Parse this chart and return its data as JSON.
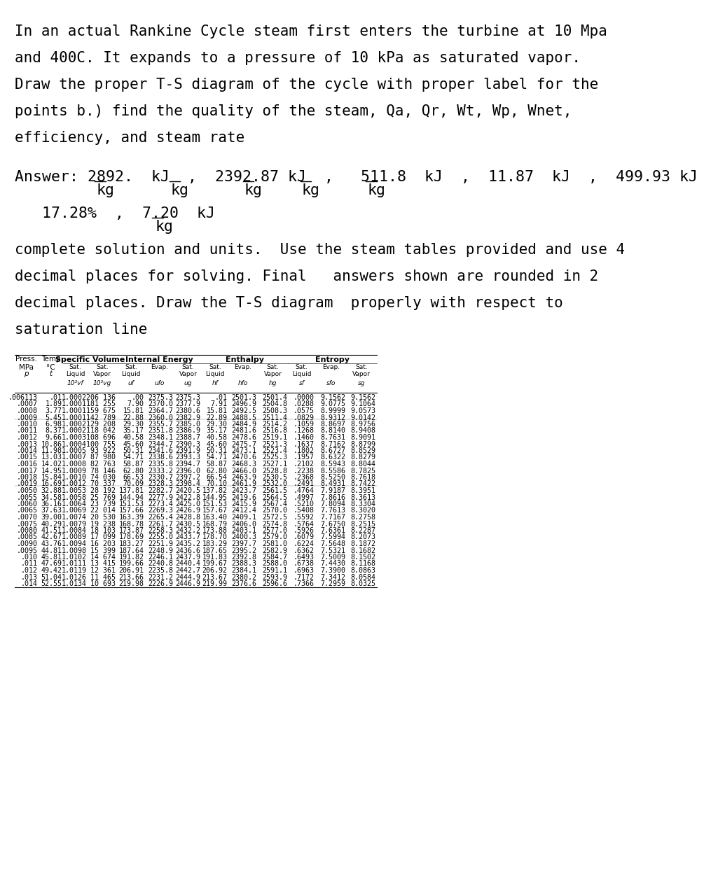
{
  "intro_text": [
    "In an actual Rankine Cycle steam first enters the turbine at 10 Mpa",
    "and 400C. It expands to a pressure of 10 kPa as saturated vapor.",
    "Draw the proper T-S diagram of the cycle with proper label for the",
    "points b.) find the quality of the steam, Qa, Qr, Wt, Wp, Wnet,",
    "efficiency, and steam rate"
  ],
  "answer_line1": "Answer: 2892.  kJ  ,  2392.87 kJ ,   511.8  kJ  ,  11.87  kJ  ,  499.93 kJ",
  "answer_line1_kg": "                  kg              kg            kg              kg             kg",
  "answer_line2": "        17.28%  ,  7.20  kJ",
  "answer_line2_kg": "                          kg",
  "body_text": [
    "complete solution and units.  Use the steam tables provided and use 4",
    "decimal places for solving. Final   answers shown are rounded in 2",
    "decimal places. Draw the T-S diagram  properly with respect to",
    "saturation line"
  ],
  "table_headers": {
    "col_groups": [
      "Press.\nMPa\np",
      "Temp\n°C\nt",
      "Specific Volume\nSat.\nLiquid\n10³vf",
      "Sat.\nVapor\n10³vg",
      "Internal Energy\nSat.\nLiquid\nuf",
      "Evap.\nufo",
      "Sat.\nVapor\nug",
      "Enthalpy\nSat.\nLiquid\nhf",
      "Evap.\nhfo",
      "Sat.\nVapor\nhg",
      "Entropy\nSat.\nLiquid\nsf",
      "Evap.\nsfo",
      "Sat.\nVapor\nsg"
    ]
  },
  "table_rows": [
    [
      ".006113",
      ".01",
      "1.0002",
      "206 136",
      ".00",
      "2375.3",
      "2375.3",
      ".01",
      "2501.3",
      "2501.4",
      ".0000",
      "9.1562",
      "9.1562"
    ],
    [
      ".0007",
      "1.89",
      "1.0001",
      "181 255",
      "7.90",
      "2370.0",
      "2377.9",
      "7.91",
      "2496.9",
      "2504.8",
      ".0288",
      "9.0775",
      "9.1064"
    ],
    [
      ".0008",
      "3.77",
      "1.0001",
      "159 675",
      "15.81",
      "2364.7",
      "2380.6",
      "15.81",
      "2492.5",
      "2508.3",
      ".0575",
      "8.9999",
      "9.0573"
    ],
    [
      ".0009",
      "5.45",
      "1.0001",
      "142 789",
      "22.88",
      "2360.0",
      "2382.9",
      "22.89",
      "2488.5",
      "2511.4",
      ".0829",
      "8.9312",
      "9.0142"
    ],
    [
      ".0010",
      "6.98",
      "1.0002",
      "129 208",
      "29.30",
      "2355.7",
      "2385.0",
      "29.30",
      "2484.9",
      "2514.2",
      ".1059",
      "8.8697",
      "8.9756"
    ],
    [
      ".0011",
      "8.37",
      "1.0002",
      "118 042",
      "35.17",
      "2351.8",
      "2386.9",
      "35.17",
      "2481.6",
      "2516.8",
      ".1268",
      "8.8140",
      "8.9408"
    ],
    [
      ".0012",
      "9.66",
      "1.0003",
      "108 696",
      "40.58",
      "2348.1",
      "2388.7",
      "40.58",
      "2478.6",
      "2519.1",
      ".1460",
      "8.7631",
      "8.9091"
    ],
    [
      ".0013",
      "10.86",
      "1.0004",
      "100 755",
      "45.60",
      "2344.7",
      "2390.3",
      "45.60",
      "2475.7",
      "2521.3",
      ".1637",
      "8.7162",
      "8.8799"
    ],
    [
      ".0014",
      "11.98",
      "1.0005",
      "93 922",
      "50.31",
      "2341.6",
      "2391.9",
      "50.31",
      "2473.1",
      "2523.4",
      ".1802",
      "8.6727",
      "8.8529"
    ],
    [
      ".0015",
      "13.03",
      "1.0007",
      "87 980",
      "54.71",
      "2338.6",
      "2393.3",
      "54.71",
      "2470.6",
      "2525.3",
      ".1957",
      "8.6322",
      "8.8279"
    ],
    [
      ".0016",
      "14.02",
      "1.0008",
      "82 763",
      "58.87",
      "2335.8",
      "2394.7",
      "58.87",
      "2468.3",
      "2527.1",
      ".2102",
      "8.5943",
      "8.8044"
    ],
    [
      ".0017",
      "14.95",
      "1.0009",
      "78 146",
      "62.80",
      "2333.2",
      "2396.0",
      "62.80",
      "2466.0",
      "2528.8",
      ".2238",
      "8.5586",
      "8.7825"
    ],
    [
      ".0018",
      "15.84",
      "1.0010",
      "74 030",
      "66.53",
      "2330.7",
      "2397.2",
      "66.54",
      "2463.9",
      "2530.5",
      ".2368",
      "8.5250",
      "8.7618"
    ],
    [
      ".0019",
      "16.69",
      "1.0012",
      "70 337",
      "70.09",
      "2328.3",
      "2398.4",
      "70.10",
      "2461.9",
      "2532.0",
      ".2491",
      "8.4931",
      "8.7422"
    ],
    [
      ".0050",
      "32.88",
      "1.0053",
      "28 192",
      "137.81",
      "2282.7",
      "2420.5",
      "137.82",
      "2423.7",
      "2561.5",
      ".4764",
      "7.9187",
      "8.3951"
    ],
    [
      ".0055",
      "34.58",
      "1.0058",
      "25 769",
      "144.94",
      "2277.9",
      "2422.8",
      "144.95",
      "2419.6",
      "2564.5",
      ".4997",
      "7.8616",
      "8.3613"
    ],
    [
      ".0060",
      "36.16",
      "1.0064",
      "23 739",
      "151.53",
      "2273.4",
      "2425.0",
      "151.53",
      "2415.9",
      "2567.4",
      ".5210",
      "7.8094",
      "8.3304"
    ],
    [
      ".0065",
      "37.63",
      "1.0069",
      "22 014",
      "157.66",
      "2269.3",
      "2426.9",
      "157.67",
      "2412.4",
      "2570.0",
      ".5408",
      "7.7613",
      "8.3020"
    ],
    [
      ".0070",
      "39.00",
      "1.0074",
      "20 530",
      "163.39",
      "2265.4",
      "2428.8",
      "163.40",
      "2409.1",
      "2572.5",
      ".5592",
      "7.7167",
      "8.2758"
    ],
    [
      ".0075",
      "40.29",
      "1.0079",
      "19 238",
      "168.78",
      "2261.7",
      "2430.5",
      "168.79",
      "2406.0",
      "2574.8",
      ".5764",
      "7.6750",
      "8.2515"
    ],
    [
      ".0080",
      "41.51",
      "1.0084",
      "18 103",
      "173.87",
      "2258.3",
      "2432.2",
      "173.88",
      "2403.1",
      "2577.0",
      ".5926",
      "7.6361",
      "8.2287"
    ],
    [
      ".0085",
      "42.67",
      "1.0089",
      "17 099",
      "178.69",
      "2255.0",
      "2433.7",
      "178.70",
      "2400.3",
      "2579.0",
      ".6079",
      "7.5994",
      "8.2073"
    ],
    [
      ".0090",
      "43.76",
      "1.0094",
      "16 203",
      "183.27",
      "2251.9",
      "2435.2",
      "183.29",
      "2397.7",
      "2581.0",
      ".6224",
      "7.5648",
      "8.1872"
    ],
    [
      ".0095",
      "44.81",
      "1.0098",
      "15 399",
      "187.64",
      "2248.9",
      "2436.6",
      "187.65",
      "2395.2",
      "2582.9",
      ".6362",
      "7.5321",
      "8.1682"
    ],
    [
      ".010",
      "45.81",
      "1.0102",
      "14 674",
      "191.82",
      "2246.1",
      "2437.9",
      "191.83",
      "2392.8",
      "2584.7",
      ".6493",
      "7.5009",
      "8.1502"
    ],
    [
      ".011",
      "47.69",
      "1.0111",
      "13 415",
      "199.66",
      "2240.8",
      "2440.4",
      "199.67",
      "2388.3",
      "2588.0",
      ".6738",
      "7.4430",
      "8.1168"
    ],
    [
      ".012",
      "49.42",
      "1.0119",
      "12 361",
      "206.91",
      "2235.8",
      "2442.7",
      "206.92",
      "2384.1",
      "2591.1",
      ".6963",
      "7.3900",
      "8.0863"
    ],
    [
      ".013",
      "51.04",
      "1.0126",
      "11 465",
      "213.66",
      "2231.2",
      "2444.9",
      "213.67",
      "2380.2",
      "2593.9",
      ".7172",
      "7.3412",
      "8.0584"
    ],
    [
      ".014",
      "52.55",
      "1.0134",
      "10 693",
      "219.98",
      "2226.9",
      "2446.9",
      "219.99",
      "2376.6",
      "2596.6",
      ".7366",
      "7.2959",
      "8.0325"
    ]
  ],
  "bg_color": "#ffffff",
  "text_color": "#000000",
  "font_size_intro": 15.5,
  "font_size_answer": 16,
  "font_size_body": 15.5,
  "font_size_table_header": 7.5,
  "font_size_table_data": 7.2
}
